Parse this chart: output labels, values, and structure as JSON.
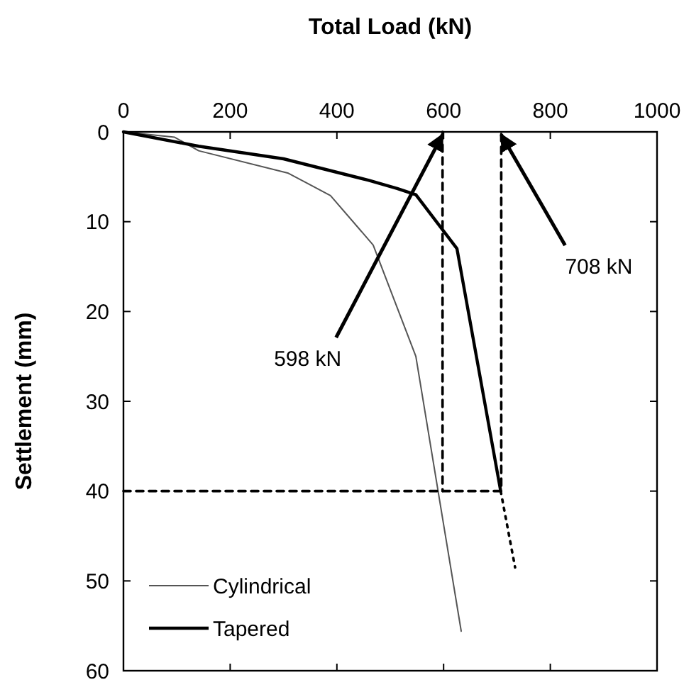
{
  "chart_data": {
    "type": "line",
    "xlabel": "Total Load (kN)",
    "ylabel": "Settlement (mm)",
    "xlim": [
      0,
      1000
    ],
    "xticks": [
      0,
      200,
      400,
      600,
      800,
      1000
    ],
    "ylim": [
      60,
      0
    ],
    "yticks": [
      0,
      10,
      20,
      30,
      40,
      50,
      60
    ],
    "grid": false,
    "legend": "bottom left",
    "series": [
      {
        "name": "Cylindrical",
        "color": "#555555",
        "x": [
          0,
          96,
          141,
          309,
          388,
          468,
          548,
          633
        ],
        "values": [
          0,
          0.6,
          2.1,
          4.6,
          7.1,
          12.6,
          25,
          55.6
        ]
      },
      {
        "name": "Tapered",
        "color": "#000000",
        "x": [
          0,
          141,
          300,
          460,
          513,
          548,
          625,
          707
        ],
        "values": [
          0,
          1.6,
          3,
          5.4,
          6.3,
          7,
          13,
          40
        ]
      },
      {
        "color": "#000000",
        "line_style": "dotted",
        "x": [
          707,
          734
        ],
        "values": [
          40,
          48.5
        ]
      },
      {
        "color": "#000000",
        "line_style": "dashed",
        "x": [
          0,
          708,
          708
        ],
        "values": [
          40,
          40,
          0
        ]
      },
      {
        "color": "#000000",
        "line_style": "dashed",
        "x": [
          598,
          598
        ],
        "values": [
          0,
          40
        ]
      }
    ],
    "annotations": [
      {
        "text": "598 kN",
        "x": 598,
        "y": 0
      },
      {
        "text": "708 kN",
        "x": 708,
        "y": 0
      }
    ]
  }
}
